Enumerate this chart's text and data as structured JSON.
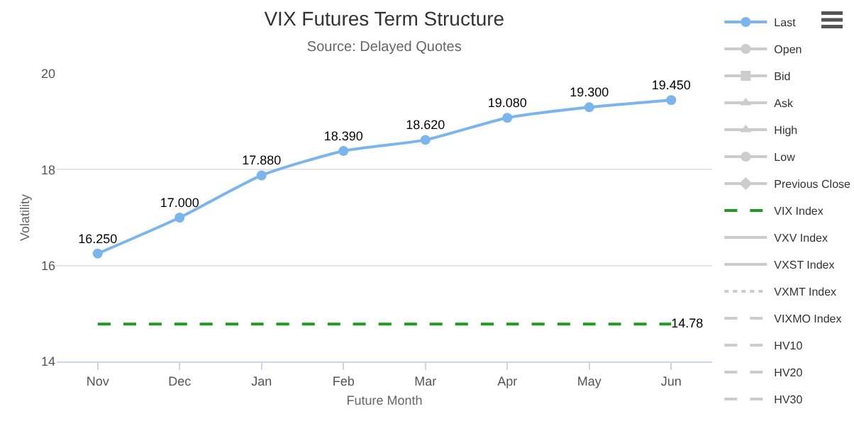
{
  "chart_data": {
    "type": "line",
    "title": "VIX Futures Term Structure",
    "subtitle": "Source: Delayed Quotes",
    "xlabel": "Future Month",
    "ylabel": "Volatility",
    "categories": [
      "Nov",
      "Dec",
      "Jan",
      "Feb",
      "Mar",
      "Apr",
      "May",
      "Jun"
    ],
    "ylim": [
      14,
      20
    ],
    "yticks": [
      14,
      16,
      18,
      20
    ],
    "grid": "y",
    "legend": "right",
    "series": [
      {
        "name": "Last",
        "color": "#7cb5ec",
        "marker": "circle",
        "values": [
          16.25,
          17.0,
          17.88,
          18.39,
          18.62,
          19.08,
          19.3,
          19.45
        ],
        "value_labels": [
          "16.250",
          "17.000",
          "17.880",
          "18.390",
          "18.620",
          "19.080",
          "19.300",
          "19.450"
        ]
      },
      {
        "name": "Open",
        "color": "#cccccc",
        "marker": "circle",
        "values": [
          null,
          null,
          null,
          null,
          null,
          null,
          null,
          null
        ]
      },
      {
        "name": "Bid",
        "color": "#cccccc",
        "marker": "square",
        "values": [
          null,
          null,
          null,
          null,
          null,
          null,
          null,
          null
        ]
      },
      {
        "name": "Ask",
        "color": "#cccccc",
        "marker": "triangle",
        "values": [
          null,
          null,
          null,
          null,
          null,
          null,
          null,
          null
        ]
      },
      {
        "name": "High",
        "color": "#cccccc",
        "marker": "triangle",
        "values": [
          null,
          null,
          null,
          null,
          null,
          null,
          null,
          null
        ]
      },
      {
        "name": "Low",
        "color": "#cccccc",
        "marker": "circle",
        "values": [
          null,
          null,
          null,
          null,
          null,
          null,
          null,
          null
        ]
      },
      {
        "name": "Previous Close",
        "color": "#cccccc",
        "marker": "diamond",
        "values": [
          null,
          null,
          null,
          null,
          null,
          null,
          null,
          null
        ]
      },
      {
        "name": "VIX Index",
        "color": "#1e9a1e",
        "marker": "none",
        "line_style": "dashed",
        "values": [
          14.78,
          14.78,
          14.78,
          14.78,
          14.78,
          14.78,
          14.78,
          14.78
        ],
        "value_labels": [
          null,
          null,
          null,
          null,
          null,
          null,
          null,
          "14.78"
        ]
      },
      {
        "name": "VXV Index",
        "color": "#cccccc",
        "marker": "none",
        "values": [
          null,
          null,
          null,
          null,
          null,
          null,
          null,
          null
        ]
      },
      {
        "name": "VXST Index",
        "color": "#cccccc",
        "marker": "none",
        "values": [
          null,
          null,
          null,
          null,
          null,
          null,
          null,
          null
        ]
      },
      {
        "name": "VXMT Index",
        "color": "#cccccc",
        "marker": "none",
        "line_style": "dotted",
        "values": [
          null,
          null,
          null,
          null,
          null,
          null,
          null,
          null
        ]
      },
      {
        "name": "VIXMO Index",
        "color": "#cccccc",
        "marker": "none",
        "line_style": "dashed",
        "values": [
          null,
          null,
          null,
          null,
          null,
          null,
          null,
          null
        ]
      },
      {
        "name": "HV10",
        "color": "#cccccc",
        "marker": "none",
        "line_style": "dashed",
        "values": [
          null,
          null,
          null,
          null,
          null,
          null,
          null,
          null
        ]
      },
      {
        "name": "HV20",
        "color": "#cccccc",
        "marker": "none",
        "line_style": "dashed",
        "values": [
          null,
          null,
          null,
          null,
          null,
          null,
          null,
          null
        ]
      },
      {
        "name": "HV30",
        "color": "#cccccc",
        "marker": "none",
        "line_style": "dashed",
        "values": [
          null,
          null,
          null,
          null,
          null,
          null,
          null,
          null
        ]
      }
    ]
  }
}
